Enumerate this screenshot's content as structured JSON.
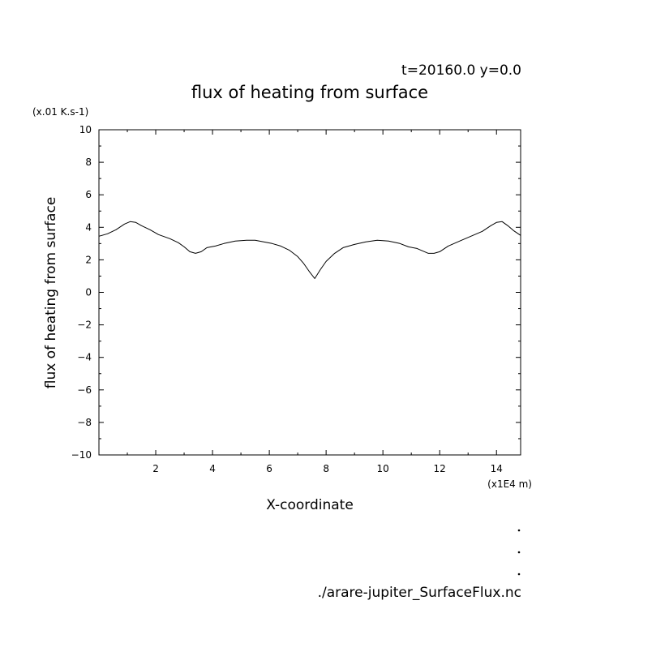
{
  "header": {
    "info": "t=20160.0 y=0.0"
  },
  "footer": {
    "filename": "./arare-jupiter_SurfaceFlux.nc"
  },
  "chart_data": {
    "type": "line",
    "title": "flux of heating from surface",
    "xlabel": "X-coordinate",
    "ylabel": "flux of heating from surface",
    "x_unit": "(x1E4 m)",
    "y_unit": "(x.01 K.s-1)",
    "xlim": [
      0,
      14.85
    ],
    "ylim": [
      -10,
      10
    ],
    "x_ticks": [
      2,
      4,
      6,
      8,
      10,
      12,
      14
    ],
    "y_ticks": [
      -10,
      -8,
      -6,
      -4,
      -2,
      0,
      2,
      4,
      6,
      8,
      10
    ],
    "grid": false,
    "series": [
      {
        "x": [
          0.0,
          0.3,
          0.6,
          0.9,
          1.1,
          1.3,
          1.5,
          1.8,
          2.1,
          2.5,
          2.8,
          3.0,
          3.2,
          3.4,
          3.6,
          3.8,
          4.1,
          4.4,
          4.8,
          5.2,
          5.5,
          5.8,
          6.1,
          6.4,
          6.7,
          7.0,
          7.2,
          7.4,
          7.6,
          7.8,
          8.0,
          8.3,
          8.6,
          9.0,
          9.4,
          9.8,
          10.2,
          10.6,
          10.9,
          11.2,
          11.4,
          11.6,
          11.8,
          12.0,
          12.3,
          12.7,
          13.1,
          13.5,
          13.8,
          14.0,
          14.2,
          14.4,
          14.6,
          14.85
        ],
        "y": [
          3.45,
          3.6,
          3.85,
          4.2,
          4.35,
          4.3,
          4.1,
          3.85,
          3.55,
          3.3,
          3.05,
          2.8,
          2.5,
          2.4,
          2.5,
          2.75,
          2.85,
          3.0,
          3.15,
          3.2,
          3.2,
          3.1,
          3.0,
          2.85,
          2.6,
          2.2,
          1.8,
          1.3,
          0.85,
          1.4,
          1.9,
          2.4,
          2.75,
          2.95,
          3.1,
          3.2,
          3.15,
          3.0,
          2.8,
          2.7,
          2.55,
          2.4,
          2.4,
          2.5,
          2.85,
          3.15,
          3.45,
          3.75,
          4.1,
          4.3,
          4.35,
          4.1,
          3.8,
          3.5
        ]
      }
    ]
  }
}
